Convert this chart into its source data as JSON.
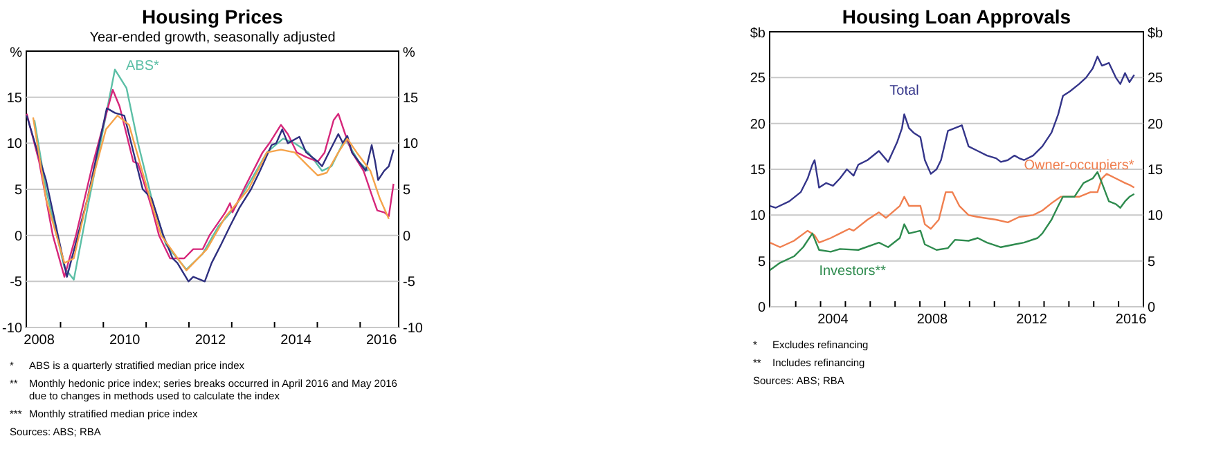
{
  "chart_data": [
    {
      "type": "line",
      "title": "Housing Prices",
      "subtitle": "Year-ended growth, seasonally adjusted",
      "ylabel": "%",
      "y2label": "%",
      "xlim": [
        2008.2,
        2016.9
      ],
      "xticks": [
        {
          "value": 2008.5,
          "label": "2008"
        },
        {
          "value": 2009,
          "label": null
        },
        {
          "value": 2010,
          "label": null
        },
        {
          "value": 2010.5,
          "label": "2010"
        },
        {
          "value": 2011,
          "label": null
        },
        {
          "value": 2012,
          "label": null
        },
        {
          "value": 2012.5,
          "label": "2012"
        },
        {
          "value": 2013,
          "label": null
        },
        {
          "value": 2014,
          "label": null
        },
        {
          "value": 2014.5,
          "label": "2014"
        },
        {
          "value": 2015,
          "label": null
        },
        {
          "value": 2016,
          "label": null
        },
        {
          "value": 2016.5,
          "label": "2016"
        }
      ],
      "ylim": [
        -10,
        20
      ],
      "yticks": [
        -10,
        -5,
        0,
        5,
        10,
        15
      ],
      "y2lim": [
        -10,
        20
      ],
      "y2ticks": [
        -10,
        -5,
        0,
        5,
        10,
        15
      ],
      "grid": "y",
      "legend": false,
      "series": [
        {
          "name": "ABS*",
          "color": "#5cbfa6",
          "x": [
            2008.39,
            2008.66,
            2009.09,
            2009.31,
            2009.63,
            2010.06,
            2010.27,
            2010.54,
            2010.81,
            2011.13,
            2011.46,
            2011.94,
            2012.32,
            2012.69,
            2013.07,
            2013.45,
            2013.82,
            2014.2,
            2014.47,
            2014.79,
            2015.11,
            2015.33,
            2015.65,
            2015.97,
            2016.19
          ],
          "values": [
            12.5,
            5,
            -3.5,
            -4.8,
            3,
            13,
            18,
            16,
            10,
            4,
            -1,
            -3.7,
            -2,
            1,
            3,
            6,
            9,
            10.5,
            10,
            9,
            7,
            7.5,
            10.5,
            8,
            7
          ]
        },
        {
          "color": "#d6267a",
          "x": [
            2008.21,
            2008.5,
            2008.82,
            2009.09,
            2009.36,
            2009.74,
            2010.22,
            2010.38,
            2010.7,
            2010.81,
            2011.13,
            2011.3,
            2011.56,
            2011.89,
            2012.1,
            2012.32,
            2012.48,
            2012.85,
            2012.96,
            2013.02,
            2013.28,
            2013.5,
            2013.72,
            2013.88,
            2014.15,
            2014.31,
            2014.52,
            2014.74,
            2015.01,
            2015.17,
            2015.38,
            2015.49,
            2015.65,
            2015.81,
            2016.08,
            2016.3,
            2016.4,
            2016.56,
            2016.67,
            2016.78
          ],
          "values": [
            13.2,
            8,
            0,
            -4.5,
            0,
            7.5,
            15.8,
            14,
            8,
            7.8,
            3,
            0,
            -2.5,
            -2.5,
            -1.5,
            -1.5,
            0,
            2.5,
            3.5,
            2.5,
            5,
            7,
            9,
            10,
            12,
            11,
            9,
            8.5,
            8,
            9,
            12.5,
            13.2,
            11,
            9,
            7,
            4,
            2.7,
            2.5,
            2.1,
            5.6
          ]
        },
        {
          "color": "#2e2f7f",
          "x": [
            2008.21,
            2008.66,
            2009.15,
            2009.63,
            2010.08,
            2010.27,
            2010.49,
            2010.92,
            2011.13,
            2011.4,
            2011.62,
            2011.73,
            2011.99,
            2012.1,
            2012.37,
            2012.53,
            2012.75,
            2012.96,
            2013.18,
            2013.45,
            2013.66,
            2013.93,
            2014.04,
            2014.18,
            2014.31,
            2014.58,
            2014.74,
            2015.01,
            2015.11,
            2015.27,
            2015.49,
            2015.6,
            2015.7,
            2015.81,
            2015.97,
            2016.13,
            2016.27,
            2016.35,
            2016.42,
            2016.56,
            2016.67,
            2016.78
          ],
          "values": [
            13,
            6,
            -4.5,
            4,
            13.8,
            13.3,
            13,
            5,
            4,
            0,
            -2.5,
            -3,
            -5,
            -4.5,
            -5,
            -3,
            -1,
            1,
            3,
            5,
            7,
            9.8,
            10,
            11.5,
            10,
            10.7,
            9,
            8,
            7.5,
            9,
            11,
            10,
            10.8,
            9,
            8,
            7,
            9.8,
            8,
            6,
            7,
            7.5,
            9.3
          ]
        },
        {
          "color": "#f5a34a",
          "x": [
            2008.36,
            2008.66,
            2009.09,
            2009.31,
            2009.63,
            2010.06,
            2010.33,
            2010.6,
            2011.03,
            2011.35,
            2011.94,
            2012.42,
            2012.85,
            2013.39,
            2013.82,
            2014.15,
            2014.47,
            2014.79,
            2015.01,
            2015.22,
            2015.49,
            2015.7,
            2015.92,
            2016.24,
            2016.46,
            2016.67
          ],
          "values": [
            12.8,
            4,
            -3,
            -2.5,
            4,
            11.5,
            13,
            12,
            5,
            0,
            -3.8,
            -1.5,
            2,
            5,
            9,
            9.3,
            9,
            7.5,
            6.5,
            6.8,
            9,
            10.5,
            9,
            7,
            4,
            1.8
          ]
        }
      ],
      "annotations": [
        "* ABS is a quarterly stratified median price index",
        "** Monthly hedonic price index; series breaks occurred in April 2016 and May 2016 due to changes in methods used to calculate the index",
        "*** Monthly stratified median price index",
        "Sources: ABS; RBA"
      ]
    },
    {
      "type": "line",
      "title": "Housing Loan Approvals",
      "ylabel": "$b",
      "y2label": "$b",
      "xlim": [
        2001.95,
        2017
      ],
      "xticks": [
        {
          "value": 2003,
          "label": null
        },
        {
          "value": 2004,
          "label": null
        },
        {
          "value": 2004.5,
          "label": "2004"
        },
        {
          "value": 2005,
          "label": null
        },
        {
          "value": 2006,
          "label": null
        },
        {
          "value": 2007,
          "label": null
        },
        {
          "value": 2008,
          "label": null
        },
        {
          "value": 2008.5,
          "label": "2008"
        },
        {
          "value": 2009,
          "label": null
        },
        {
          "value": 2010,
          "label": null
        },
        {
          "value": 2011,
          "label": null
        },
        {
          "value": 2012,
          "label": null
        },
        {
          "value": 2012.5,
          "label": "2012"
        },
        {
          "value": 2013,
          "label": null
        },
        {
          "value": 2014,
          "label": null
        },
        {
          "value": 2015,
          "label": null
        },
        {
          "value": 2016,
          "label": null
        },
        {
          "value": 2016.5,
          "label": "2016"
        }
      ],
      "ylim": [
        0,
        30
      ],
      "yticks": [
        0,
        5,
        10,
        15,
        20,
        25
      ],
      "y2lim": [
        0,
        30
      ],
      "y2ticks": [
        0,
        5,
        10,
        15,
        20,
        25
      ],
      "grid": "y",
      "legend": false,
      "series": [
        {
          "name": "Total",
          "color": "#34358a",
          "x": [
            2001.96,
            2002.19,
            2002.74,
            2003.2,
            2003.48,
            2003.67,
            2003.76,
            2003.94,
            2004.22,
            2004.5,
            2004.78,
            2005.06,
            2005.33,
            2005.52,
            2005.89,
            2006.35,
            2006.72,
            2007.09,
            2007.28,
            2007.37,
            2007.56,
            2007.74,
            2008.02,
            2008.2,
            2008.44,
            2008.67,
            2008.85,
            2009.13,
            2009.41,
            2009.69,
            2009.96,
            2010.33,
            2010.7,
            2011.07,
            2011.26,
            2011.54,
            2011.81,
            2012.0,
            2012.19,
            2012.56,
            2012.93,
            2013.3,
            2013.57,
            2013.76,
            2014.04,
            2014.41,
            2014.69,
            2014.96,
            2015.15,
            2015.33,
            2015.61,
            2015.89,
            2016.07,
            2016.26,
            2016.44,
            2016.63
          ],
          "values": [
            11,
            10.8,
            11.5,
            12.5,
            14,
            15.5,
            16,
            13,
            13.5,
            13.2,
            14,
            15,
            14.3,
            15.5,
            16,
            17,
            15.8,
            18,
            19.5,
            21,
            19.5,
            19,
            18.5,
            16,
            14.5,
            15,
            16,
            19.2,
            19.5,
            19.8,
            17.5,
            17,
            16.5,
            16.2,
            15.8,
            16,
            16.5,
            16.2,
            16,
            16.5,
            17.5,
            19,
            21,
            23,
            23.5,
            24.3,
            25,
            26,
            27.3,
            26.3,
            26.6,
            25,
            24.3,
            25.5,
            24.5,
            25.3
          ]
        },
        {
          "name": "Owner-occupiers*",
          "color": "#f07f4f",
          "x": [
            2001.96,
            2002.37,
            2002.93,
            2003.48,
            2003.76,
            2003.94,
            2004.41,
            2004.78,
            2005.15,
            2005.33,
            2005.89,
            2006.35,
            2006.63,
            2007.19,
            2007.37,
            2007.56,
            2008.02,
            2008.2,
            2008.44,
            2008.76,
            2009.04,
            2009.31,
            2009.59,
            2009.96,
            2010.33,
            2011.07,
            2011.54,
            2012.0,
            2012.56,
            2012.93,
            2013.3,
            2013.67,
            2014.41,
            2014.87,
            2015.15,
            2015.33,
            2015.52,
            2015.89,
            2016.26,
            2016.44,
            2016.63
          ],
          "values": [
            7,
            6.5,
            7.2,
            8.3,
            7.8,
            7,
            7.5,
            8,
            8.5,
            8.3,
            9.5,
            10.3,
            9.7,
            11,
            12,
            11,
            11,
            9,
            8.5,
            9.5,
            12.5,
            12.5,
            11,
            10,
            9.8,
            9.5,
            9.2,
            9.8,
            10,
            10.5,
            11.3,
            12,
            12,
            12.5,
            12.5,
            14,
            14.5,
            14,
            13.5,
            13.3,
            13
          ]
        },
        {
          "name": "Investors**",
          "color": "#2e8b4e",
          "x": [
            2001.96,
            2002.37,
            2002.93,
            2003.3,
            2003.67,
            2003.94,
            2004.41,
            2004.78,
            2005.52,
            2006.35,
            2006.72,
            2007.19,
            2007.37,
            2007.56,
            2008.02,
            2008.2,
            2008.67,
            2009.13,
            2009.41,
            2009.96,
            2010.33,
            2010.7,
            2011.26,
            2011.81,
            2012.19,
            2012.74,
            2012.93,
            2013.3,
            2013.57,
            2013.76,
            2014.22,
            2014.59,
            2014.96,
            2015.15,
            2015.33,
            2015.61,
            2015.89,
            2016.07,
            2016.26,
            2016.44,
            2016.63
          ],
          "values": [
            4,
            4.8,
            5.5,
            6.5,
            8,
            6.2,
            6,
            6.3,
            6.2,
            7,
            6.5,
            7.5,
            9,
            8,
            8.3,
            6.8,
            6.2,
            6.4,
            7.3,
            7.2,
            7.5,
            7,
            6.5,
            6.8,
            7,
            7.5,
            8,
            9.5,
            11,
            12,
            12,
            13.5,
            14,
            14.7,
            13.5,
            11.5,
            11.2,
            10.8,
            11.5,
            12,
            12.3
          ]
        }
      ],
      "annotations": [
        "* Excludes refinancing",
        "** Includes refinancing",
        "Sources: ABS; RBA"
      ]
    }
  ]
}
